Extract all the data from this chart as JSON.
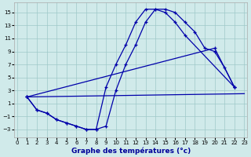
{
  "background_color": "#d0eaea",
  "grid_color": "#9ec8c8",
  "line_color": "#0000aa",
  "xlabel": "Graphe des températures (°c)",
  "xlim": [
    -0.3,
    23.3
  ],
  "ylim": [
    -4.2,
    16.5
  ],
  "yticks": [
    -3,
    -1,
    1,
    3,
    5,
    7,
    9,
    11,
    13,
    15
  ],
  "xticks": [
    0,
    1,
    2,
    3,
    4,
    5,
    6,
    7,
    8,
    9,
    10,
    11,
    12,
    13,
    14,
    15,
    16,
    17,
    18,
    19,
    20,
    21,
    22,
    23
  ],
  "curve_arc": {
    "x": [
      1,
      2,
      3,
      4,
      5,
      6,
      7,
      8,
      9,
      10,
      11,
      12,
      13,
      14,
      15,
      16,
      17,
      18,
      19,
      20,
      21,
      22
    ],
    "y": [
      2,
      0,
      -0.5,
      -1.5,
      -2.0,
      -2.5,
      -3,
      -3,
      -2.5,
      3.0,
      7.0,
      10.0,
      13.5,
      15.5,
      15.5,
      15.0,
      13.5,
      12.0,
      9.5,
      9.0,
      6.5,
      3.5
    ]
  },
  "curve_vshape": {
    "x": [
      1,
      2,
      3,
      4,
      5,
      6,
      7,
      8,
      9,
      10,
      11,
      12,
      13,
      14,
      15,
      16,
      17,
      22
    ],
    "y": [
      2,
      0,
      -0.5,
      -1.5,
      -2.0,
      -2.5,
      -3,
      -3,
      3.5,
      7.0,
      10.0,
      13.5,
      15.5,
      15.5,
      15.0,
      13.5,
      11.5,
      3.5
    ]
  },
  "curve_diag_steep": {
    "x": [
      1,
      20,
      22
    ],
    "y": [
      2,
      9.5,
      3.5
    ]
  },
  "curve_diag_flat": {
    "x": [
      1,
      23
    ],
    "y": [
      2,
      2.5
    ]
  }
}
